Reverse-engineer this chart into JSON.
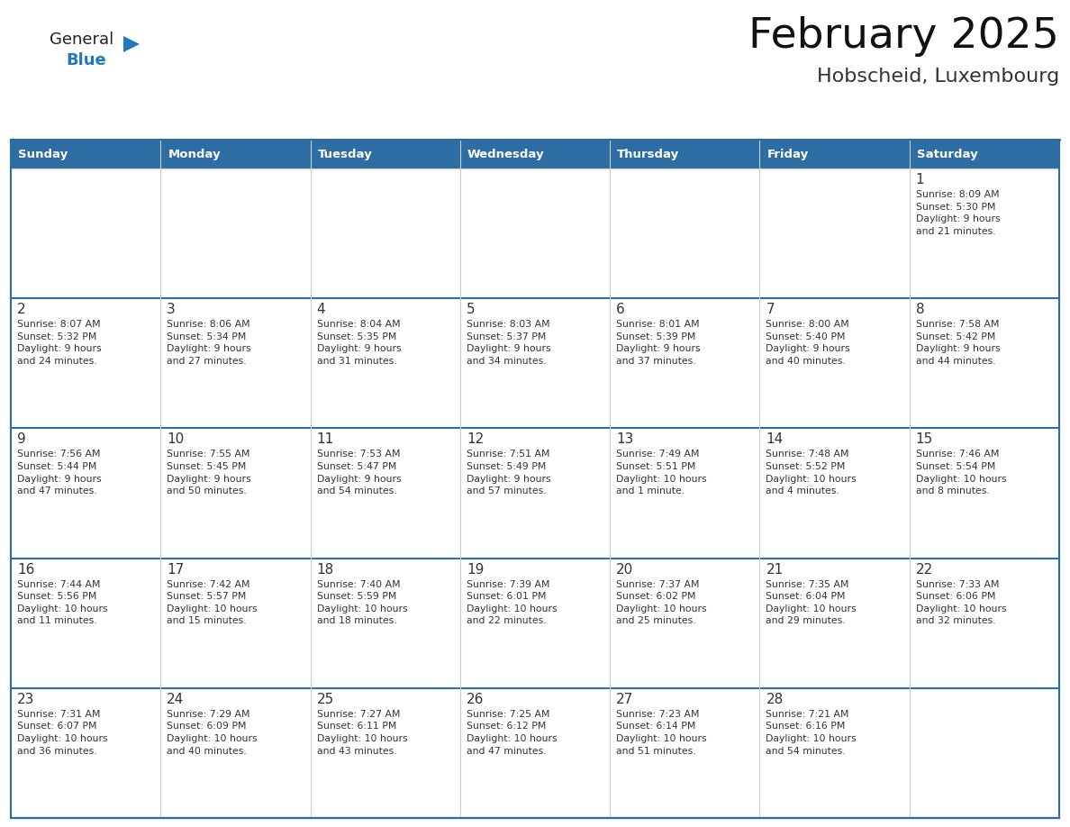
{
  "title": "February 2025",
  "subtitle": "Hobscheid, Luxembourg",
  "days_of_week": [
    "Sunday",
    "Monday",
    "Tuesday",
    "Wednesday",
    "Thursday",
    "Friday",
    "Saturday"
  ],
  "header_bg": "#2e6da4",
  "header_text": "#ffffff",
  "cell_bg": "#ffffff",
  "cell_bg_alt": "#f2f2f2",
  "cell_border": "#aaaaaa",
  "day_number_color": "#333333",
  "info_text_color": "#333333",
  "title_color": "#111111",
  "subtitle_color": "#333333",
  "logo_general_color": "#222222",
  "logo_blue_color": "#2278bd",
  "logo_triangle_color": "#2278bd",
  "background_color": "#ffffff",
  "weeks": [
    [
      {
        "day": null,
        "info": ""
      },
      {
        "day": null,
        "info": ""
      },
      {
        "day": null,
        "info": ""
      },
      {
        "day": null,
        "info": ""
      },
      {
        "day": null,
        "info": ""
      },
      {
        "day": null,
        "info": ""
      },
      {
        "day": 1,
        "info": "Sunrise: 8:09 AM\nSunset: 5:30 PM\nDaylight: 9 hours\nand 21 minutes."
      }
    ],
    [
      {
        "day": 2,
        "info": "Sunrise: 8:07 AM\nSunset: 5:32 PM\nDaylight: 9 hours\nand 24 minutes."
      },
      {
        "day": 3,
        "info": "Sunrise: 8:06 AM\nSunset: 5:34 PM\nDaylight: 9 hours\nand 27 minutes."
      },
      {
        "day": 4,
        "info": "Sunrise: 8:04 AM\nSunset: 5:35 PM\nDaylight: 9 hours\nand 31 minutes."
      },
      {
        "day": 5,
        "info": "Sunrise: 8:03 AM\nSunset: 5:37 PM\nDaylight: 9 hours\nand 34 minutes."
      },
      {
        "day": 6,
        "info": "Sunrise: 8:01 AM\nSunset: 5:39 PM\nDaylight: 9 hours\nand 37 minutes."
      },
      {
        "day": 7,
        "info": "Sunrise: 8:00 AM\nSunset: 5:40 PM\nDaylight: 9 hours\nand 40 minutes."
      },
      {
        "day": 8,
        "info": "Sunrise: 7:58 AM\nSunset: 5:42 PM\nDaylight: 9 hours\nand 44 minutes."
      }
    ],
    [
      {
        "day": 9,
        "info": "Sunrise: 7:56 AM\nSunset: 5:44 PM\nDaylight: 9 hours\nand 47 minutes."
      },
      {
        "day": 10,
        "info": "Sunrise: 7:55 AM\nSunset: 5:45 PM\nDaylight: 9 hours\nand 50 minutes."
      },
      {
        "day": 11,
        "info": "Sunrise: 7:53 AM\nSunset: 5:47 PM\nDaylight: 9 hours\nand 54 minutes."
      },
      {
        "day": 12,
        "info": "Sunrise: 7:51 AM\nSunset: 5:49 PM\nDaylight: 9 hours\nand 57 minutes."
      },
      {
        "day": 13,
        "info": "Sunrise: 7:49 AM\nSunset: 5:51 PM\nDaylight: 10 hours\nand 1 minute."
      },
      {
        "day": 14,
        "info": "Sunrise: 7:48 AM\nSunset: 5:52 PM\nDaylight: 10 hours\nand 4 minutes."
      },
      {
        "day": 15,
        "info": "Sunrise: 7:46 AM\nSunset: 5:54 PM\nDaylight: 10 hours\nand 8 minutes."
      }
    ],
    [
      {
        "day": 16,
        "info": "Sunrise: 7:44 AM\nSunset: 5:56 PM\nDaylight: 10 hours\nand 11 minutes."
      },
      {
        "day": 17,
        "info": "Sunrise: 7:42 AM\nSunset: 5:57 PM\nDaylight: 10 hours\nand 15 minutes."
      },
      {
        "day": 18,
        "info": "Sunrise: 7:40 AM\nSunset: 5:59 PM\nDaylight: 10 hours\nand 18 minutes."
      },
      {
        "day": 19,
        "info": "Sunrise: 7:39 AM\nSunset: 6:01 PM\nDaylight: 10 hours\nand 22 minutes."
      },
      {
        "day": 20,
        "info": "Sunrise: 7:37 AM\nSunset: 6:02 PM\nDaylight: 10 hours\nand 25 minutes."
      },
      {
        "day": 21,
        "info": "Sunrise: 7:35 AM\nSunset: 6:04 PM\nDaylight: 10 hours\nand 29 minutes."
      },
      {
        "day": 22,
        "info": "Sunrise: 7:33 AM\nSunset: 6:06 PM\nDaylight: 10 hours\nand 32 minutes."
      }
    ],
    [
      {
        "day": 23,
        "info": "Sunrise: 7:31 AM\nSunset: 6:07 PM\nDaylight: 10 hours\nand 36 minutes."
      },
      {
        "day": 24,
        "info": "Sunrise: 7:29 AM\nSunset: 6:09 PM\nDaylight: 10 hours\nand 40 minutes."
      },
      {
        "day": 25,
        "info": "Sunrise: 7:27 AM\nSunset: 6:11 PM\nDaylight: 10 hours\nand 43 minutes."
      },
      {
        "day": 26,
        "info": "Sunrise: 7:25 AM\nSunset: 6:12 PM\nDaylight: 10 hours\nand 47 minutes."
      },
      {
        "day": 27,
        "info": "Sunrise: 7:23 AM\nSunset: 6:14 PM\nDaylight: 10 hours\nand 51 minutes."
      },
      {
        "day": 28,
        "info": "Sunrise: 7:21 AM\nSunset: 6:16 PM\nDaylight: 10 hours\nand 54 minutes."
      },
      {
        "day": null,
        "info": ""
      }
    ]
  ]
}
